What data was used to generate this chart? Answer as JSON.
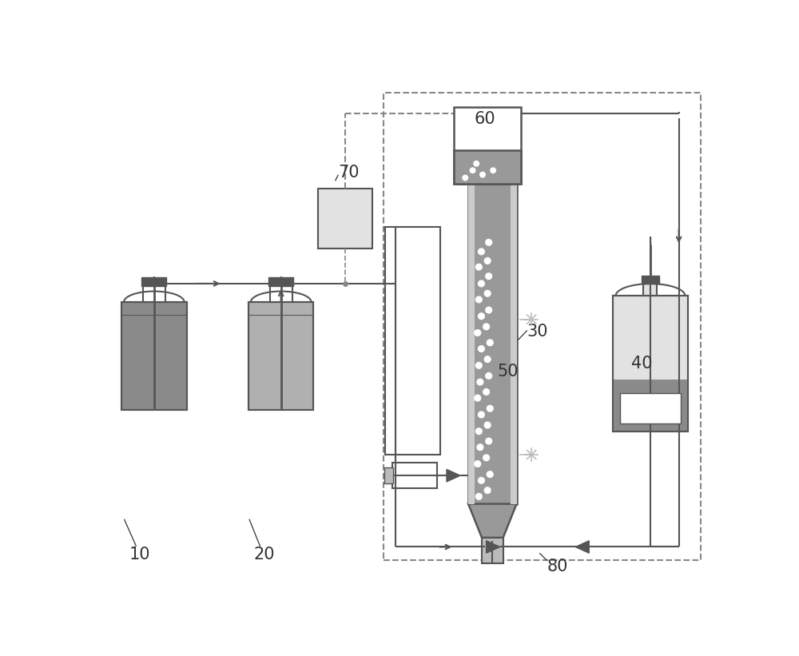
{
  "bg": "#ffffff",
  "c_dark": "#555555",
  "c_mid": "#999999",
  "c_light": "#bbbbbb",
  "c_lighter": "#cccccc",
  "c_vlight": "#e2e2e2",
  "c_line": "#555555",
  "c_dashed": "#888888",
  "c_label": "#333333",
  "c_fill1": "#8a8a8a",
  "c_fill2": "#b0b0b0",
  "c_fill3": "#c8c8c8",
  "c_cap": "#555555",
  "c_valve": "#bbbbbb",
  "figw": 10.0,
  "figh": 8.21,
  "dpi": 100
}
